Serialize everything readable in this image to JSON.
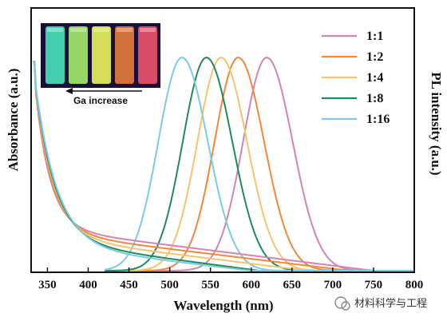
{
  "chart_data": {
    "type": "line",
    "xlabel": "Wavelength (nm)",
    "ylabel_left": "Absorbance (a.u.)",
    "ylabel_right": "PL intensity (a.u.)",
    "xlim": [
      330,
      800
    ],
    "x_ticks": [
      "350",
      "400",
      "450",
      "500",
      "550",
      "600",
      "650",
      "700",
      "750",
      "800"
    ],
    "legend_position": "top-right",
    "series": [
      {
        "name": "1:1",
        "color": "#d483b4",
        "pl_peak": 619,
        "abs_onset": 750
      },
      {
        "name": "1:2",
        "color": "#f2873a",
        "pl_peak": 584,
        "abs_onset": 720
      },
      {
        "name": "1:4",
        "color": "#f7c46c",
        "pl_peak": 563,
        "abs_onset": 670
      },
      {
        "name": "1:8",
        "color": "#1f8a5a",
        "pl_peak": 545,
        "abs_onset": 610
      },
      {
        "name": "1:16",
        "color": "#7ccbe6",
        "pl_peak": 515,
        "abs_onset": 600
      }
    ]
  },
  "inset": {
    "caption": "Ga increase",
    "vial_colors": [
      "#46e0b8",
      "#9ee86a",
      "#e4f05a",
      "#e07a3c",
      "#e8506a"
    ]
  },
  "watermark": "材料科学与工程"
}
